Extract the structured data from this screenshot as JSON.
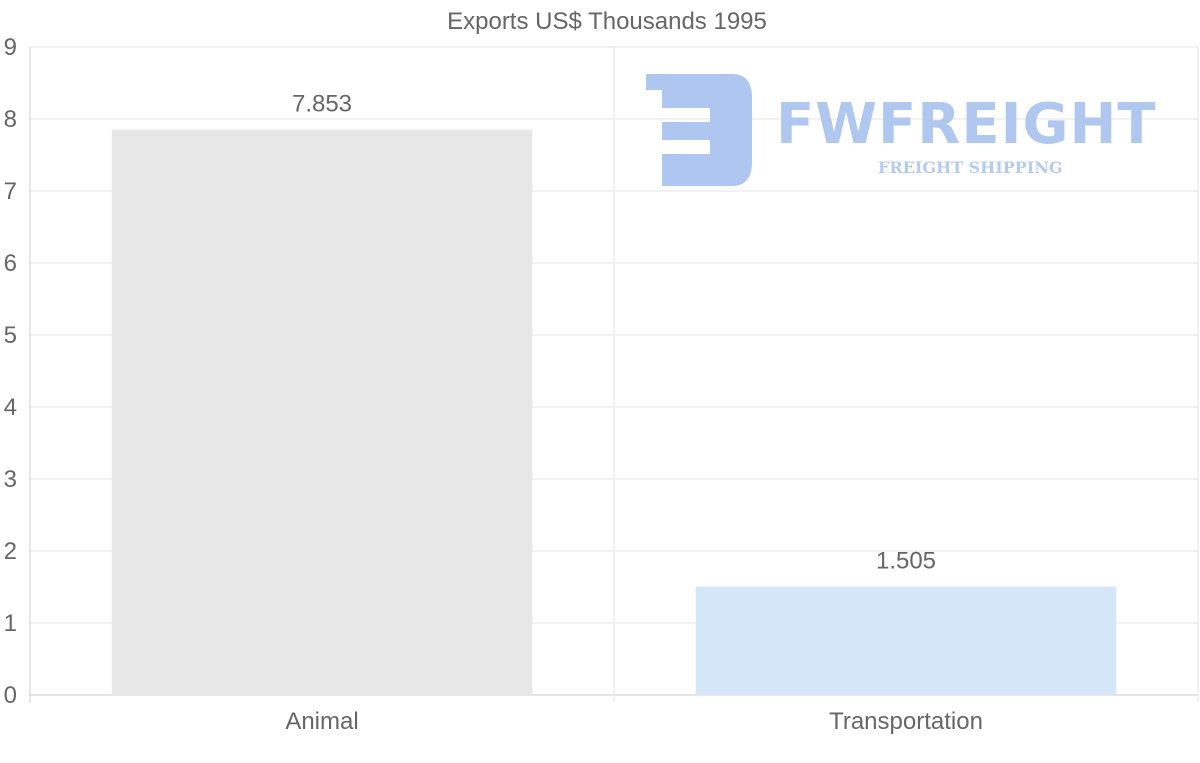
{
  "chart_data": {
    "type": "bar",
    "title": "Exports US$ Thousands 1995",
    "categories": [
      "Animal",
      "Transportation"
    ],
    "values": [
      7.853,
      1.505
    ],
    "value_labels": [
      "7.853",
      "1.505"
    ],
    "bar_colors": [
      "#e7e7e7",
      "#d6e6f9"
    ],
    "ylim": [
      0,
      9
    ],
    "yticks": [
      0,
      1,
      2,
      3,
      4,
      5,
      6,
      7,
      8,
      9
    ],
    "xlabel": "",
    "ylabel": "",
    "grid": true,
    "legend": "none"
  },
  "watermark": {
    "name": "FWFREIGHT",
    "tagline": "FREIGHT SHIPPING",
    "color": "#afc6f0"
  },
  "colors": {
    "text": "#666666",
    "grid": "#e6e6e6",
    "axis": "#cccccc"
  }
}
